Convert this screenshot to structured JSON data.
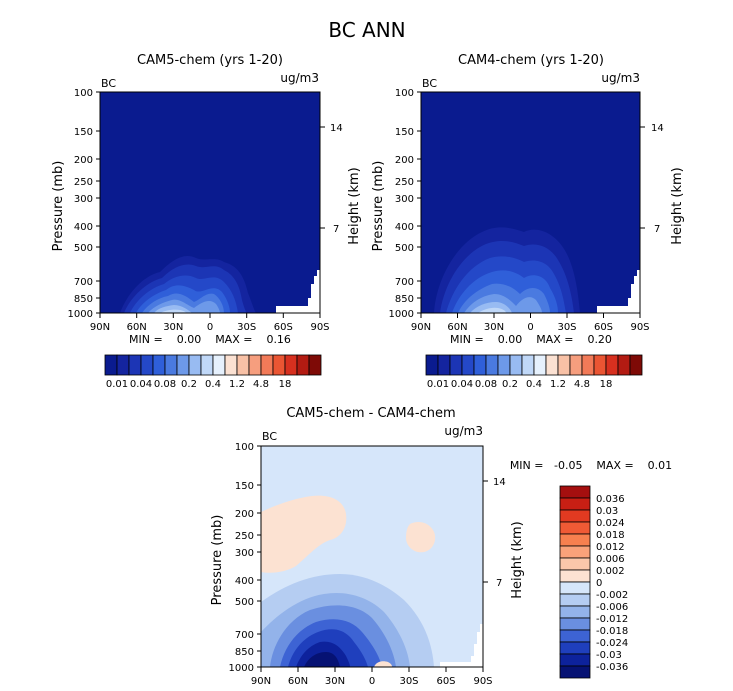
{
  "page": {
    "title": "BC ANN"
  },
  "chart_data": [
    {
      "type": "heatmap",
      "title": "CAM5-chem (yrs 1-20)",
      "corner_left": "BC",
      "corner_right": "ug/m3",
      "ylabel": "Pressure (mb)",
      "ylabel_right": "Height (km)",
      "x_ticks": [
        "90N",
        "60N",
        "30N",
        "0",
        "30S",
        "60S",
        "90S"
      ],
      "y_ticks": [
        "100",
        "150",
        "200",
        "250",
        "300",
        "400",
        "500",
        "700",
        "850",
        "1000"
      ],
      "height_ticks": [
        "14",
        "7"
      ],
      "stats": "MIN =    0.00    MAX =    0.16",
      "colorbar_labels": [
        "0.01",
        "0.04",
        "0.08",
        "0.2",
        "0.4",
        "1.2",
        "4.8",
        "18"
      ],
      "colors": [
        "#0a1b8f",
        "#14249f",
        "#1c35b5",
        "#2448c8",
        "#2f5fd9",
        "#4a7ae0",
        "#6d99e9",
        "#98bbf2",
        "#c0d8f8",
        "#e6f1fd",
        "#fbe1d2",
        "#f8c1a6",
        "#f69e7e",
        "#f27a58",
        "#ea5533",
        "#d7301f",
        "#b31b12",
        "#7e0a06"
      ]
    },
    {
      "type": "heatmap",
      "title": "CAM4-chem (yrs 1-20)",
      "corner_left": "BC",
      "corner_right": "ug/m3",
      "ylabel": "Pressure (mb)",
      "ylabel_right": "Height (km)",
      "x_ticks": [
        "90N",
        "60N",
        "30N",
        "0",
        "30S",
        "60S",
        "90S"
      ],
      "y_ticks": [
        "100",
        "150",
        "200",
        "250",
        "300",
        "400",
        "500",
        "700",
        "850",
        "1000"
      ],
      "height_ticks": [
        "14",
        "7"
      ],
      "stats": "MIN =    0.00    MAX =    0.20",
      "colorbar_labels": [
        "0.01",
        "0.04",
        "0.08",
        "0.2",
        "0.4",
        "1.2",
        "4.8",
        "18"
      ]
    },
    {
      "type": "heatmap",
      "title": "CAM5-chem - CAM4-chem",
      "corner_left": "BC",
      "corner_right": "ug/m3",
      "ylabel": "Pressure (mb)",
      "ylabel_right": "Height (km)",
      "x_ticks": [
        "90N",
        "60N",
        "30N",
        "0",
        "30S",
        "60S",
        "90S"
      ],
      "y_ticks": [
        "100",
        "150",
        "200",
        "250",
        "300",
        "400",
        "500",
        "700",
        "850",
        "1000"
      ],
      "height_ticks": [
        "14",
        "7"
      ],
      "stats": "MIN =   -0.05    MAX =    0.01",
      "colorbar_labels": [
        "0.036",
        "0.03",
        "0.024",
        "0.018",
        "0.012",
        "0.006",
        "0.002",
        "0",
        "-0.002",
        "-0.006",
        "-0.012",
        "-0.018",
        "-0.024",
        "-0.03",
        "-0.036"
      ],
      "colors": [
        "#a50f0f",
        "#c81f14",
        "#e23a21",
        "#f05a35",
        "#f7804f",
        "#f9a27a",
        "#fbc7aa",
        "#fce2d2",
        "#d6e6fa",
        "#b5cdf2",
        "#93b3ea",
        "#6a8fe0",
        "#3d63d4",
        "#1f3fbd",
        "#0d229c",
        "#061273"
      ]
    }
  ]
}
